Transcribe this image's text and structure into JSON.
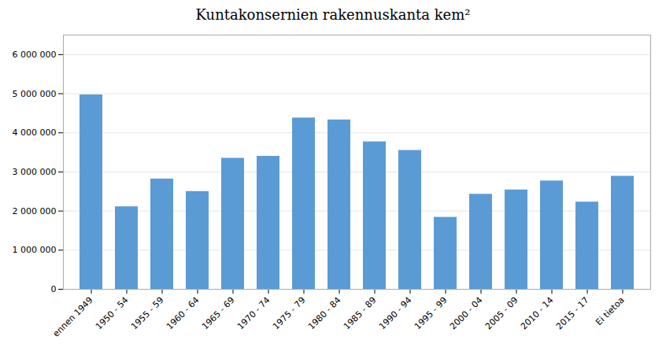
{
  "chart_data": {
    "type": "bar",
    "title": "Kuntakonsernien rakennuskanta kem²",
    "categories": [
      "ennen 1949",
      "1950 - 54",
      "1955 - 59",
      "1960 - 64",
      "1965 - 69",
      "1970 - 74",
      "1975 - 79",
      "1980 - 84",
      "1985 - 89",
      "1990 - 94",
      "1995 - 99",
      "2000 - 04",
      "2005 - 09",
      "2010 - 14",
      "2015 - 17",
      "Ei tietoa"
    ],
    "values": [
      4970000,
      2110000,
      2820000,
      2500000,
      3350000,
      3400000,
      4380000,
      4330000,
      3770000,
      3550000,
      1840000,
      2430000,
      2540000,
      2770000,
      2230000,
      2890000
    ],
    "color": "#5B9BD5",
    "ylim": [
      0,
      6500000
    ],
    "yticks": [
      0,
      {
        "value": 1000000,
        "label": "1 000 000"
      },
      {
        "value": 2000000,
        "label": "2 000 000"
      },
      {
        "value": 3000000,
        "label": "3 000 000"
      },
      {
        "value": 4000000,
        "label": "4 000 000"
      },
      {
        "value": 5000000,
        "label": "5 000 000"
      },
      {
        "value": 6000000,
        "label": "6 000 000"
      }
    ],
    "grid": true
  }
}
